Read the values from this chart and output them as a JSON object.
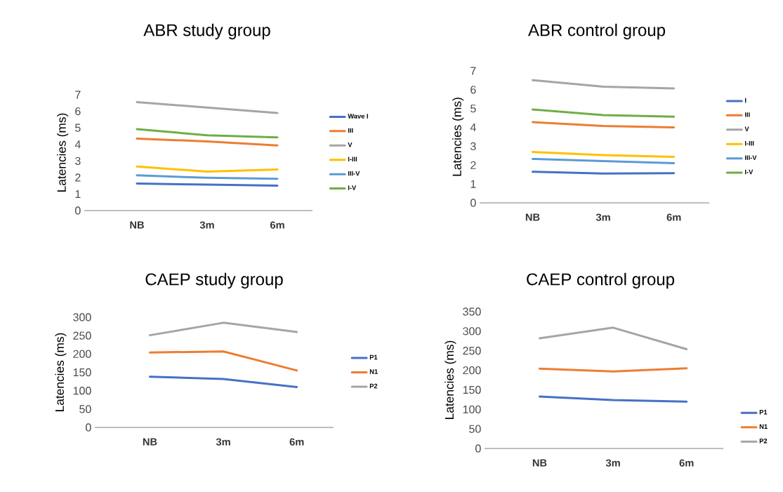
{
  "chart_data": [
    {
      "type": "line",
      "title": "ABR study group",
      "ylabel": "Latencies (ms)",
      "categories": [
        "NB",
        "3m",
        "6m"
      ],
      "ylim": [
        0,
        7
      ],
      "yticks": [
        0,
        1,
        2,
        3,
        4,
        5,
        6,
        7
      ],
      "grid": false,
      "legend": "right",
      "marker": "none",
      "series": [
        {
          "name": "Wave I",
          "color": "#4472c4",
          "values": [
            1.63,
            1.57,
            1.51
          ]
        },
        {
          "name": "III",
          "color": "#ed7d31",
          "values": [
            4.35,
            4.18,
            3.94
          ]
        },
        {
          "name": "V",
          "color": "#a5a5a5",
          "values": [
            6.55,
            6.23,
            5.9
          ]
        },
        {
          "name": "I-III",
          "color": "#ffc000",
          "values": [
            2.66,
            2.35,
            2.48
          ]
        },
        {
          "name": "III-V",
          "color": "#5b9bd5",
          "values": [
            2.13,
            1.98,
            1.92
          ]
        },
        {
          "name": "I-V",
          "color": "#70ad47",
          "values": [
            4.92,
            4.55,
            4.42
          ]
        }
      ]
    },
    {
      "type": "line",
      "title": "ABR control group",
      "ylabel": "Latencies (ms)",
      "categories": [
        "NB",
        "3m",
        "6m"
      ],
      "ylim": [
        0,
        7
      ],
      "yticks": [
        0,
        1,
        2,
        3,
        4,
        5,
        6,
        7
      ],
      "grid": false,
      "legend": "right",
      "marker": "none",
      "series": [
        {
          "name": "I",
          "color": "#4472c4",
          "values": [
            1.65,
            1.55,
            1.57
          ]
        },
        {
          "name": "III",
          "color": "#ed7d31",
          "values": [
            4.28,
            4.08,
            4.0
          ]
        },
        {
          "name": "V",
          "color": "#a5a5a5",
          "values": [
            6.51,
            6.16,
            6.07
          ]
        },
        {
          "name": "I-III",
          "color": "#ffc000",
          "values": [
            2.7,
            2.53,
            2.44
          ]
        },
        {
          "name": "III-V",
          "color": "#5b9bd5",
          "values": [
            2.33,
            2.22,
            2.1
          ]
        },
        {
          "name": "I-V",
          "color": "#70ad47",
          "values": [
            4.95,
            4.65,
            4.57
          ]
        }
      ]
    },
    {
      "type": "line",
      "title": "CAEP study group",
      "ylabel": "Latencies (ms)",
      "categories": [
        "NB",
        "3m",
        "6m"
      ],
      "ylim": [
        0,
        300
      ],
      "yticks": [
        0,
        50,
        100,
        150,
        200,
        250,
        300
      ],
      "grid": false,
      "legend": "right",
      "marker": "none",
      "series": [
        {
          "name": "P1",
          "color": "#4472c4",
          "values": [
            138,
            132,
            110
          ]
        },
        {
          "name": "N1",
          "color": "#ed7d31",
          "values": [
            204,
            207,
            155
          ]
        },
        {
          "name": "P2",
          "color": "#a5a5a5",
          "values": [
            251,
            285,
            260
          ]
        }
      ]
    },
    {
      "type": "line",
      "title": "CAEP control group",
      "ylabel": "Latencies (ms)",
      "categories": [
        "NB",
        "3m",
        "6m"
      ],
      "ylim": [
        0,
        350
      ],
      "yticks": [
        0,
        50,
        100,
        150,
        200,
        250,
        300,
        350
      ],
      "grid": false,
      "legend": "bottom right",
      "marker": "none",
      "series": [
        {
          "name": "P1",
          "color": "#4472c4",
          "values": [
            133,
            124,
            120
          ]
        },
        {
          "name": "N1",
          "color": "#ed7d31",
          "values": [
            204,
            197,
            205
          ]
        },
        {
          "name": "P2",
          "color": "#a5a5a5",
          "values": [
            282,
            309,
            254
          ]
        }
      ]
    }
  ]
}
